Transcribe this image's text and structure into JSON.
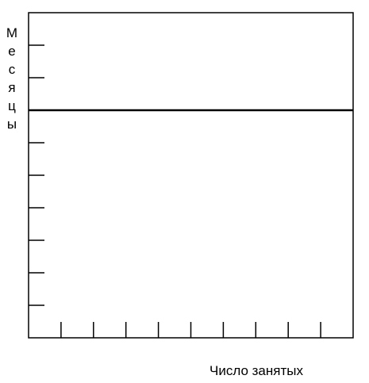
{
  "chart_data": {
    "type": "line",
    "title": "",
    "xlabel": "Число занятых",
    "ylabel": "Месяцы",
    "x_tick_count": 9,
    "y_tick_count": 9,
    "grid": false,
    "legend": "none",
    "series": [
      {
        "values": [
          1,
          1
        ]
      }
    ],
    "colors": {
      "axis": "#000000",
      "line": "#000000",
      "background": "#ffffff"
    }
  }
}
